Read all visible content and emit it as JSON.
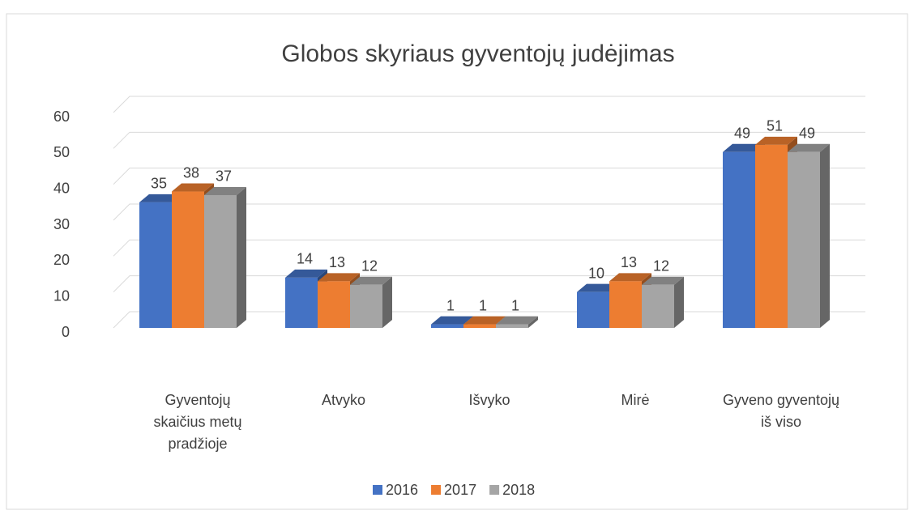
{
  "chart_data": {
    "type": "bar3d",
    "title": "Globos skyriaus gyventojų judėjimas",
    "categories": [
      "Gyventojų skaičius metų pradžioje",
      "Atvyko",
      "Išvyko",
      "Mirė",
      "Gyveno gyventojų iš viso"
    ],
    "series": [
      {
        "name": "2016",
        "color": "#4472c4",
        "values": [
          35,
          14,
          1,
          10,
          49
        ]
      },
      {
        "name": "2017",
        "color": "#ed7d31",
        "values": [
          38,
          13,
          1,
          13,
          51
        ]
      },
      {
        "name": "2018",
        "color": "#a5a5a5",
        "values": [
          37,
          12,
          1,
          12,
          49
        ]
      }
    ],
    "ylim": [
      0,
      60
    ],
    "yticks": [
      0,
      10,
      20,
      30,
      40,
      50,
      60
    ],
    "grid": true,
    "legend": "bottom"
  }
}
